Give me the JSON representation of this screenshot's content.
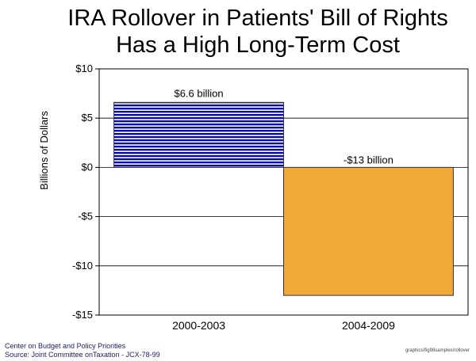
{
  "chart_data": {
    "type": "bar",
    "title_lines": [
      "IRA Rollover in Patients' Bill of Rights",
      "Has a High Long-Term Cost"
    ],
    "ylabel": "Billions of Dollars",
    "xlabel": "",
    "categories": [
      "2000-2003",
      "2004-2009"
    ],
    "values": [
      6.6,
      -13
    ],
    "data_labels": [
      "$6.6 billion",
      "-$13 billion"
    ],
    "ylim": [
      -15,
      10
    ],
    "yticks": [
      10,
      5,
      0,
      -5,
      -10,
      -15
    ],
    "ytick_labels": [
      "$10",
      "$5",
      "$0",
      "-$5",
      "-$10",
      "-$15"
    ],
    "grid": true,
    "bar_colors": [
      "#0a0aa8",
      "#f0a838"
    ],
    "bar_pattern": [
      "horizontal-stripes",
      "solid"
    ]
  },
  "footer": {
    "credit_line1": "Center on Budget and Policy Priorities",
    "credit_line2": "Source: Joint Committee onTaxation - JCX-78-99",
    "file_ref": "graphics/fig98samples/rollover"
  }
}
